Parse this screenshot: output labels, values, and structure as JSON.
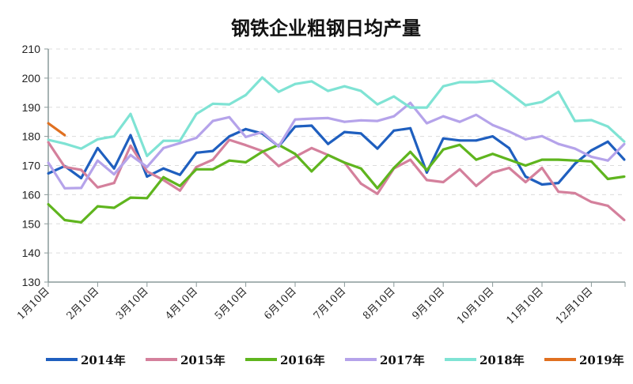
{
  "chart_data": {
    "type": "line",
    "title": "钢铁企业粗钢日均产量",
    "xlabel": "",
    "ylabel": "",
    "ylim": [
      130,
      210
    ],
    "yticks": [
      130,
      140,
      150,
      160,
      170,
      180,
      190,
      200,
      210
    ],
    "grid": "horizontal dashed",
    "legend_position": "bottom",
    "points_per_year": 36,
    "month_labels": [
      "1月10日",
      "2月10日",
      "3月10日",
      "4月10日",
      "5月10日",
      "6月10日",
      "7月10日",
      "8月10日",
      "9月10日",
      "10月10日",
      "11月10日",
      "12月10日"
    ],
    "series": [
      {
        "name": "2014年",
        "color": "#1f5fbf",
        "values": [
          167.3,
          169.8,
          165.7,
          176,
          169,
          180.4,
          166.2,
          169,
          166.8,
          174.4,
          175,
          180,
          182.5,
          181,
          176.6,
          183.4,
          183.7,
          177.4,
          181.5,
          181,
          175.8,
          182,
          182.8,
          167.6,
          179.3,
          178.6,
          178.6,
          180,
          176,
          166.2,
          163.5,
          164,
          170.6,
          175.2,
          178.2,
          172
        ]
      },
      {
        "name": "2015年",
        "color": "#d4809c",
        "values": [
          178,
          169.5,
          168.5,
          162.5,
          164,
          176.8,
          168,
          165,
          161.4,
          169.5,
          172,
          178.8,
          177,
          175,
          169.8,
          173,
          176,
          173.6,
          171,
          163.8,
          160.3,
          169,
          172,
          165,
          164.3,
          168.7,
          163,
          167.6,
          169.2,
          164.3,
          169.2,
          161,
          160.5,
          157.5,
          156.2,
          151.3
        ]
      },
      {
        "name": "2016年",
        "color": "#5fb51e",
        "values": [
          156.7,
          151.3,
          150.5,
          156,
          155.5,
          159,
          158.8,
          166,
          163,
          168.7,
          168.7,
          171.7,
          171.1,
          174.7,
          177.1,
          174,
          168,
          173.6,
          171,
          169,
          162.2,
          169.2,
          174.7,
          168.4,
          175.5,
          177.1,
          172,
          174,
          172,
          170,
          172,
          172,
          171.7,
          171.4,
          165.4,
          166.2
        ]
      },
      {
        "name": "2017年",
        "color": "#b5a3ea",
        "values": [
          171,
          162.2,
          162.3,
          171.7,
          167,
          173.6,
          169.5,
          176,
          177.7,
          179.5,
          185.3,
          186.6,
          179.8,
          181.5,
          176.6,
          185.8,
          186.1,
          186.3,
          185,
          185.5,
          185.3,
          186.9,
          191.5,
          184.5,
          186.9,
          185,
          187.4,
          183.9,
          181.7,
          179,
          180.1,
          177.4,
          175.8,
          173,
          171.7,
          177.4
        ]
      },
      {
        "name": "2018年",
        "color": "#7fe3d4",
        "values": [
          178.8,
          177.5,
          175.8,
          179,
          180,
          187.7,
          173.3,
          178.5,
          178.5,
          187.7,
          191.2,
          191,
          194.2,
          200.2,
          195.3,
          198,
          198.9,
          195.6,
          197.2,
          195.6,
          191,
          193.7,
          189.9,
          189.9,
          197.2,
          198.6,
          198.6,
          199.1,
          195,
          190.7,
          191.8,
          195.3,
          185.3,
          185.6,
          183.4,
          178.2
        ]
      },
      {
        "name": "2019年",
        "color": "#e07020",
        "values": [
          184.5,
          180.4
        ]
      }
    ]
  }
}
